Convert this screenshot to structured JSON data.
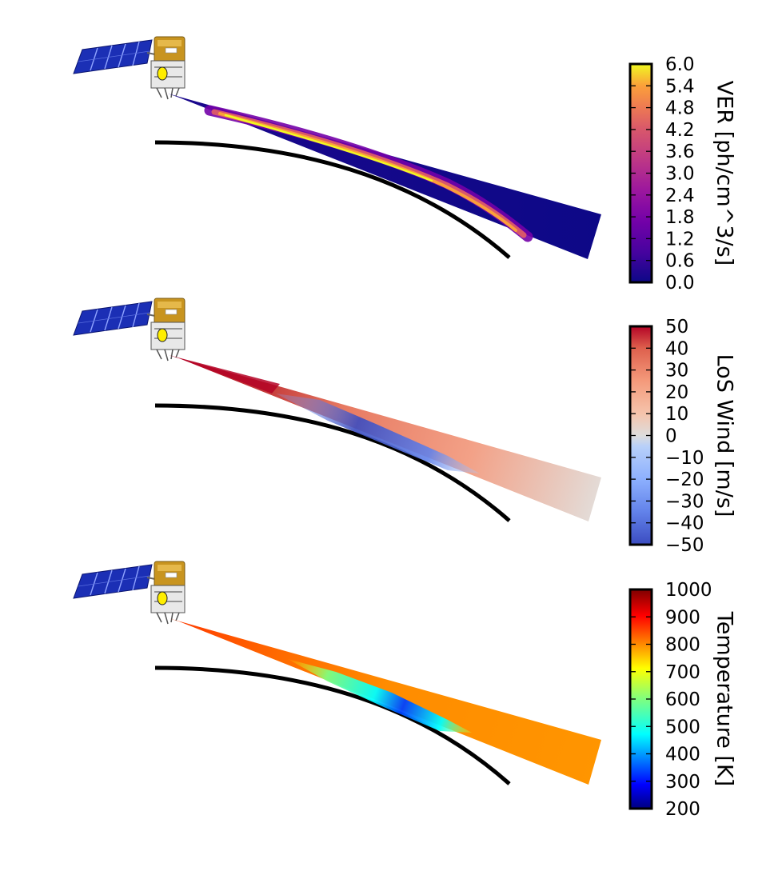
{
  "chart_data": [
    {
      "type": "heatmap",
      "title": "",
      "colormap": "plasma",
      "colorbar": {
        "label": "VER [ph/cm^3/s]",
        "ticks": [
          "0.0",
          "0.6",
          "1.2",
          "1.8",
          "2.4",
          "3.0",
          "3.6",
          "4.2",
          "4.8",
          "5.4",
          "6.0"
        ],
        "range": [
          0,
          6
        ]
      },
      "description_values": {
        "background": 0.0,
        "peak_layer": 6.0
      }
    },
    {
      "type": "heatmap",
      "title": "",
      "colormap": "coolwarm",
      "colorbar": {
        "label": "LoS Wind [m/s]",
        "ticks": [
          "−50",
          "−40",
          "−30",
          "−20",
          "−10",
          "0",
          "10",
          "20",
          "30",
          "40",
          "50"
        ],
        "range": [
          -50,
          50
        ]
      },
      "description_values": {
        "near_satellite": 50,
        "lower_edge": -40,
        "far_field": 20
      }
    },
    {
      "type": "heatmap",
      "title": "",
      "colormap": "jet",
      "colorbar": {
        "label": "Temperature [K]",
        "ticks": [
          "200",
          "300",
          "400",
          "500",
          "600",
          "700",
          "800",
          "900",
          "1000"
        ],
        "range": [
          200,
          1000
        ]
      },
      "description_values": {
        "near_satellite": 850,
        "bulk": 760,
        "lower_edge": 350
      }
    }
  ],
  "colors": {
    "earth_limb": "#000000",
    "solar_panel": "#1b2fb5",
    "satellite_body": "#c8941f",
    "satellite_lens": "#ffee00"
  },
  "icons": [
    "satellite-icon",
    "earth-limb-curve"
  ]
}
